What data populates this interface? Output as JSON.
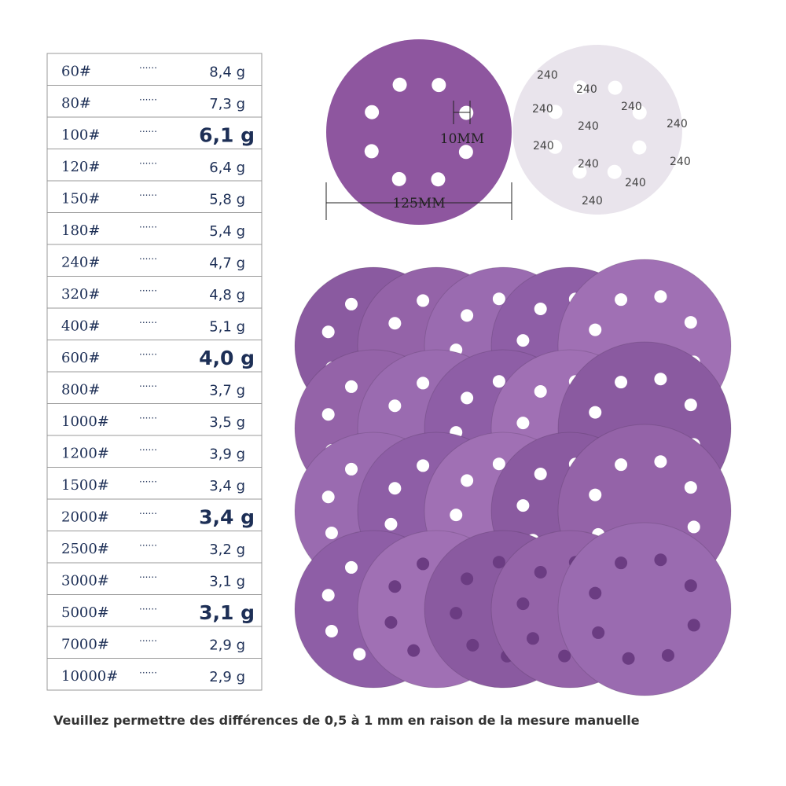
{
  "table": {
    "rows": [
      {
        "grit": "60#",
        "dots": "······",
        "weight": "8,4 g"
      },
      {
        "grit": "80#",
        "dots": "······",
        "weight": "7,3 g"
      },
      {
        "grit": "100#",
        "dots": "······",
        "weight": "6,1 g",
        "bold": true
      },
      {
        "grit": "120#",
        "dots": "······",
        "weight": "6,4 g"
      },
      {
        "grit": "150#",
        "dots": "······",
        "weight": "5,8 g"
      },
      {
        "grit": "180#",
        "dots": "······",
        "weight": "5,4 g"
      },
      {
        "grit": "240#",
        "dots": "······",
        "weight": "4,7 g"
      },
      {
        "grit": "320#",
        "dots": "······",
        "weight": "4,8 g"
      },
      {
        "grit": "400#",
        "dots": "······",
        "weight": "5,1 g"
      },
      {
        "grit": "600#",
        "dots": "······",
        "weight": "4,0 g",
        "bold": true
      },
      {
        "grit": "800#",
        "dots": "······",
        "weight": "3,7 g"
      },
      {
        "grit": "1000#",
        "dots": "······",
        "weight": "3,5 g"
      },
      {
        "grit": "1200#",
        "dots": "······",
        "weight": "3,9 g"
      },
      {
        "grit": "1500#",
        "dots": "······",
        "weight": "3,4 g"
      },
      {
        "grit": "2000#",
        "dots": "······",
        "weight": "3,4 g",
        "bold": true
      },
      {
        "grit": "2500#",
        "dots": "······",
        "weight": "3,2 g"
      },
      {
        "grit": "3000#",
        "dots": "······",
        "weight": "3,1 g"
      },
      {
        "grit": "5000#",
        "dots": "······",
        "weight": "3,1 g",
        "bold": true
      },
      {
        "grit": "7000#",
        "dots": "······",
        "weight": "2,9 g"
      },
      {
        "grit": "10000#",
        "dots": "······",
        "weight": "2,9 g"
      }
    ]
  },
  "disc": {
    "hole_size": "10MM",
    "diameter": "125MM",
    "back_print": "240"
  },
  "footer": "Veuillez permettre des différences de 0,5 à 1 mm en raison de la mesure manuelle"
}
